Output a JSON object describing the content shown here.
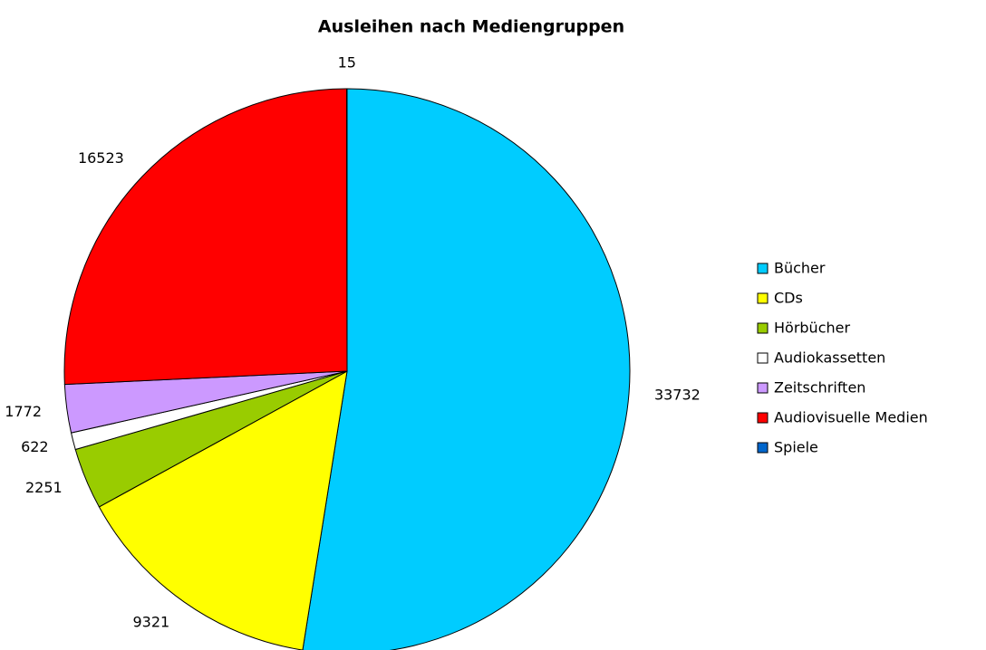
{
  "chart_data": {
    "type": "pie",
    "title": "Ausleihen nach Mediengruppen",
    "categories": [
      "Bücher",
      "CDs",
      "Hörbücher",
      "Audiokassetten",
      "Zeitschriften",
      "Audiovisuelle Medien",
      "Spiele"
    ],
    "values": [
      33732,
      9321,
      2251,
      622,
      1772,
      16523,
      15
    ],
    "colors": [
      "#00ccff",
      "#ffff00",
      "#99cc00",
      "#ffffff",
      "#cc99ff",
      "#ff0000",
      "#0066cc"
    ],
    "legend": "right"
  }
}
